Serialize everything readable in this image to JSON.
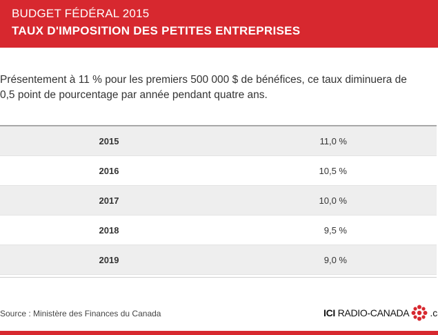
{
  "header": {
    "kicker": "BUDGET FÉDÉRAL 2015",
    "title": "TAUX D'IMPOSITION DES PETITES ENTREPRISES"
  },
  "intro": {
    "line1": "Présentement à 11 % pour les premiers 500 000 $ de bénéfices, ce taux diminuera de",
    "line2": "0,5 point de pourcentage par année pendant quatre ans."
  },
  "table": {
    "rows": [
      {
        "year": "2015",
        "rate": "11,0 %"
      },
      {
        "year": "2016",
        "rate": "10,5 %"
      },
      {
        "year": "2017",
        "rate": "10,0 %"
      },
      {
        "year": "2018",
        "rate": "9,5 %"
      },
      {
        "year": "2019",
        "rate": "9,0 %"
      }
    ]
  },
  "footer": {
    "source": "Source : Ministère des Finances du Canada",
    "logo_ici": "ICI",
    "logo_name": "RADIO-CANADA",
    "logo_tld": ".ca",
    "logo_icon": "cbc-gem-icon"
  },
  "colors": {
    "brand_red": "#d7282f",
    "row_shade": "#eeeeee",
    "text": "#333333"
  }
}
